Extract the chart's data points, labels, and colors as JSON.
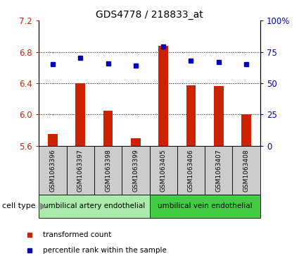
{
  "title": "GDS4778 / 218833_at",
  "samples": [
    "GSM1063396",
    "GSM1063397",
    "GSM1063398",
    "GSM1063399",
    "GSM1063405",
    "GSM1063406",
    "GSM1063407",
    "GSM1063408"
  ],
  "red_values": [
    5.75,
    6.4,
    6.05,
    5.7,
    6.88,
    6.37,
    6.36,
    6.0
  ],
  "blue_values": [
    65,
    70,
    66,
    64,
    79,
    68,
    67,
    65
  ],
  "ylim_left": [
    5.6,
    7.2
  ],
  "yticks_left": [
    5.6,
    6.0,
    6.4,
    6.8,
    7.2
  ],
  "yticks_right": [
    0,
    25,
    50,
    75,
    100
  ],
  "ylim_right": [
    0,
    100
  ],
  "bar_color": "#cc2200",
  "dot_color": "#0000bb",
  "cell_type_groups": [
    {
      "label": "umbilical artery endothelial",
      "start": 0,
      "end": 3,
      "color": "#aaeaaa"
    },
    {
      "label": "umbilical vein endothelial",
      "start": 4,
      "end": 7,
      "color": "#44cc44"
    }
  ],
  "legend_items": [
    {
      "label": "transformed count",
      "color": "#cc2200"
    },
    {
      "label": "percentile rank within the sample",
      "color": "#0000bb"
    }
  ],
  "cell_type_label": "cell type",
  "sample_box_color": "#cccccc",
  "figsize": [
    4.25,
    3.63
  ],
  "dpi": 100
}
